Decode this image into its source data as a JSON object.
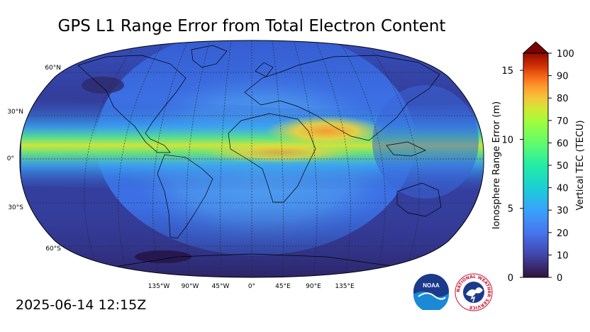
{
  "title": "GPS L1 Range Error from Total Electron Content",
  "timestamp": "2025-06-14 12:15Z",
  "map": {
    "projection": "robinson",
    "lat_labels": [
      "60°N",
      "30°N",
      "0°",
      "30°S",
      "60°S"
    ],
    "lon_labels": [
      "135°W",
      "90°W",
      "45°W",
      "0°",
      "45°E",
      "90°E",
      "135°E"
    ],
    "colors": {
      "ocean_low": "#2f2a6e",
      "mid": "#3d74e8",
      "high": "#2ac8c0",
      "peak": "#f7b23a"
    }
  },
  "colorbar": {
    "left_axis_label": "Ionosphere Range Error (m)",
    "right_axis_label": "Vertical TEC (TECU)",
    "left_ticks": [
      "0",
      "5",
      "10",
      "15"
    ],
    "right_ticks": [
      "0",
      "10",
      "20",
      "30",
      "40",
      "50",
      "60",
      "70",
      "80",
      "90",
      "100"
    ],
    "colormap": "turbo",
    "extend": "max"
  },
  "logos": {
    "noaa": "NOAA",
    "nws_ring": "NATIONAL WEATHER SERVICE"
  }
}
